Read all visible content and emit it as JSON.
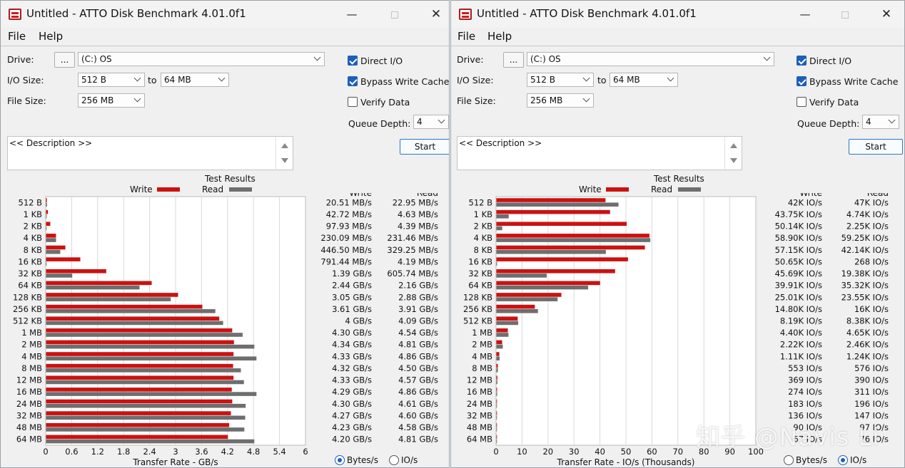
{
  "windows": [
    {
      "title": "Untitled - ATTO Disk Benchmark 4.01.0f1",
      "menu": [
        "File",
        "Help"
      ],
      "drive_label": "Drive:",
      "drive_browse": "...",
      "drive_value": "(C:) OS",
      "io_size_label": "I/O Size:",
      "io_from": "512 B",
      "io_to_label": "to",
      "io_to": "64 MB",
      "file_size_label": "File Size:",
      "file_size": "256 MB",
      "direct_io": "Direct I/O",
      "bypass_write_cache": "Bypass Write Cache",
      "verify_data": "Verify Data",
      "queue_depth_label": "Queue Depth:",
      "queue_depth": "4",
      "description": "<< Description >>",
      "start": "Start",
      "results_title": "Test Results",
      "legend_write": "Write",
      "legend_read": "Read",
      "col_write": "Write",
      "col_read": "Read",
      "radio_bytes": "Bytes/s",
      "radio_io": "IO/s",
      "selected": "bytes"
    },
    {
      "title": "Untitled - ATTO Disk Benchmark 4.01.0f1",
      "menu": [
        "File",
        "Help"
      ],
      "drive_label": "Drive:",
      "drive_browse": "...",
      "drive_value": "(C:) OS",
      "io_size_label": "I/O Size:",
      "io_from": "512 B",
      "io_to_label": "to",
      "io_to": "64 MB",
      "file_size_label": "File Size:",
      "file_size": "256 MB",
      "direct_io": "Direct I/O",
      "bypass_write_cache": "Bypass Write Cache",
      "verify_data": "Verify Data",
      "queue_depth_label": "Queue Depth:",
      "queue_depth": "4",
      "description": "<< Description >>",
      "start": "Start",
      "results_title": "Test Results",
      "legend_write": "Write",
      "legend_read": "Read",
      "col_write": "Write",
      "col_read": "Read",
      "radio_bytes": "Bytes/s",
      "radio_io": "IO/s",
      "selected": "io"
    }
  ],
  "colors": {
    "write": "#cc1111",
    "read": "#6e6e6e",
    "accent": "#1d5fba"
  },
  "watermark": "知乎 @Navis Li",
  "chart_data": [
    {
      "type": "bar",
      "title": "Test Results",
      "xlabel": "Transfer Rate - GB/s",
      "xlim": [
        0,
        6
      ],
      "xticks": [
        "0",
        "0.6",
        "1.2",
        "1.8",
        "2.4",
        "3",
        "3.6",
        "4.2",
        "4.8",
        "5.4",
        "6"
      ],
      "categories": [
        "512 B",
        "1 KB",
        "2 KB",
        "4 KB",
        "8 KB",
        "16 KB",
        "32 KB",
        "64 KB",
        "128 KB",
        "256 KB",
        "512 KB",
        "1 MB",
        "2 MB",
        "4 MB",
        "8 MB",
        "12 MB",
        "16 MB",
        "24 MB",
        "32 MB",
        "48 MB",
        "64 MB"
      ],
      "series": [
        {
          "name": "Write",
          "values": [
            0.02051,
            0.04272,
            0.09793,
            0.23009,
            0.4465,
            0.79144,
            1.39,
            2.44,
            3.05,
            3.61,
            4.0,
            4.3,
            4.34,
            4.33,
            4.32,
            4.33,
            4.29,
            4.3,
            4.27,
            4.23,
            4.2
          ],
          "labels": [
            "20.51 MB/s",
            "42.72 MB/s",
            "97.93 MB/s",
            "230.09 MB/s",
            "446.50 MB/s",
            "791.44 MB/s",
            "1.39 GB/s",
            "2.44 GB/s",
            "3.05 GB/s",
            "3.61 GB/s",
            "4 GB/s",
            "4.30 GB/s",
            "4.34 GB/s",
            "4.33 GB/s",
            "4.32 GB/s",
            "4.33 GB/s",
            "4.29 GB/s",
            "4.30 GB/s",
            "4.27 GB/s",
            "4.23 GB/s",
            "4.20 GB/s"
          ]
        },
        {
          "name": "Read",
          "values": [
            0.02295,
            0.00463,
            0.00439,
            0.23146,
            0.32925,
            0.00419,
            0.60574,
            2.16,
            2.88,
            3.91,
            4.09,
            4.54,
            4.81,
            4.86,
            4.5,
            4.57,
            4.86,
            4.61,
            4.6,
            4.58,
            4.81
          ],
          "labels": [
            "22.95 MB/s",
            "4.63 MB/s",
            "4.39 MB/s",
            "231.46 MB/s",
            "329.25 MB/s",
            "4.19 MB/s",
            "605.74 MB/s",
            "2.16 GB/s",
            "2.88 GB/s",
            "3.91 GB/s",
            "4.09 GB/s",
            "4.54 GB/s",
            "4.81 GB/s",
            "4.86 GB/s",
            "4.50 GB/s",
            "4.57 GB/s",
            "4.86 GB/s",
            "4.61 GB/s",
            "4.60 GB/s",
            "4.58 GB/s",
            "4.81 GB/s"
          ]
        }
      ]
    },
    {
      "type": "bar",
      "title": "Test Results",
      "xlabel": "Transfer Rate - IO/s (Thousands)",
      "xlim": [
        0,
        100
      ],
      "xticks": [
        "0",
        "10",
        "20",
        "30",
        "40",
        "50",
        "60",
        "70",
        "80",
        "90",
        "100"
      ],
      "categories": [
        "512 B",
        "1 KB",
        "2 KB",
        "4 KB",
        "8 KB",
        "16 KB",
        "32 KB",
        "64 KB",
        "128 KB",
        "256 KB",
        "512 KB",
        "1 MB",
        "2 MB",
        "4 MB",
        "8 MB",
        "12 MB",
        "16 MB",
        "24 MB",
        "32 MB",
        "48 MB",
        "64 MB"
      ],
      "series": [
        {
          "name": "Write",
          "values": [
            42,
            43.75,
            50.14,
            58.9,
            57.15,
            50.65,
            45.69,
            39.91,
            25.01,
            14.8,
            8.19,
            4.4,
            2.22,
            1.11,
            0.553,
            0.369,
            0.274,
            0.183,
            0.136,
            0.09,
            0.067
          ],
          "labels": [
            "42K IO/s",
            "43.75K IO/s",
            "50.14K IO/s",
            "58.90K IO/s",
            "57.15K IO/s",
            "50.65K IO/s",
            "45.69K IO/s",
            "39.91K IO/s",
            "25.01K IO/s",
            "14.80K IO/s",
            "8.19K IO/s",
            "4.40K IO/s",
            "2.22K IO/s",
            "1.11K IO/s",
            "553 IO/s",
            "369 IO/s",
            "274 IO/s",
            "183 IO/s",
            "136 IO/s",
            "90 IO/s",
            "67 IO/s"
          ]
        },
        {
          "name": "Read",
          "values": [
            47,
            4.74,
            2.25,
            59.25,
            42.14,
            0.268,
            19.38,
            35.32,
            23.55,
            16,
            8.38,
            4.65,
            2.46,
            1.24,
            0.576,
            0.39,
            0.311,
            0.196,
            0.147,
            0.097,
            0.076
          ],
          "labels": [
            "47K IO/s",
            "4.74K IO/s",
            "2.25K IO/s",
            "59.25K IO/s",
            "42.14K IO/s",
            "268 IO/s",
            "19.38K IO/s",
            "35.32K IO/s",
            "23.55K IO/s",
            "16K IO/s",
            "8.38K IO/s",
            "4.65K IO/s",
            "2.46K IO/s",
            "1.24K IO/s",
            "576 IO/s",
            "390 IO/s",
            "311 IO/s",
            "196 IO/s",
            "147 IO/s",
            "97 IO/s",
            "76 IO/s"
          ]
        }
      ]
    }
  ]
}
